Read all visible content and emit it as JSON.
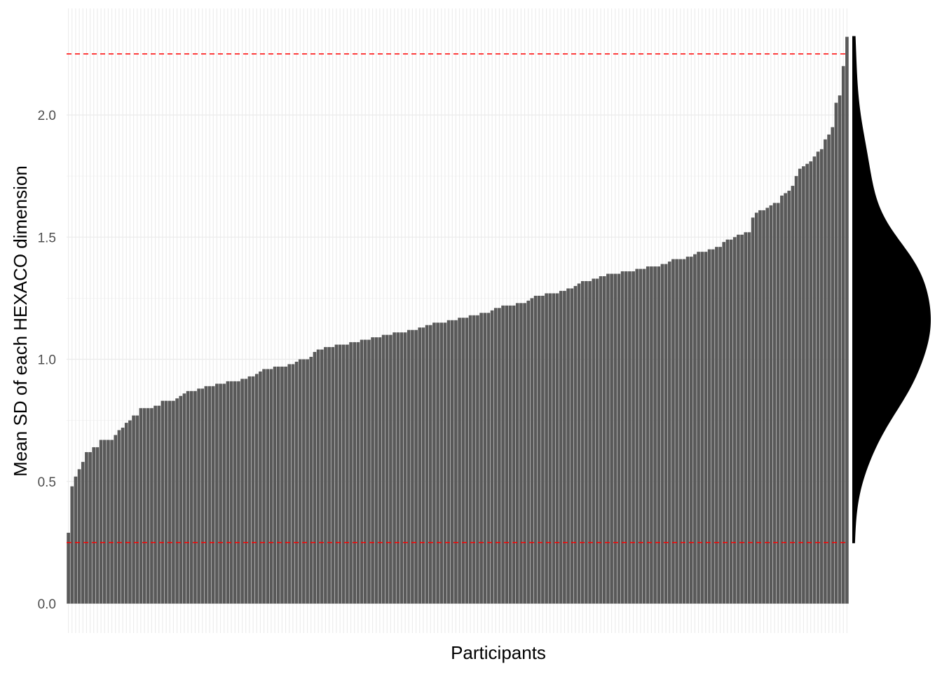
{
  "chart_data": {
    "type": "bar",
    "title": "",
    "xlabel": "Participants",
    "ylabel": "Mean SD of each HEXACO dimension",
    "ylim": [
      0.0,
      2.32
    ],
    "yticks": [
      0.0,
      0.5,
      1.0,
      1.5,
      2.0
    ],
    "ytick_labels": [
      "0.0",
      "0.5",
      "1.0",
      "1.5",
      "2.0"
    ],
    "x_tick_labels_shown": false,
    "grid": true,
    "bar_color": "#595959",
    "grid_color": "#ebebeb",
    "reference_lines": [
      {
        "value": 2.25,
        "color": "#ff0000",
        "style": "dashed"
      },
      {
        "value": 0.25,
        "color": "#ff0000",
        "style": "dashed"
      }
    ],
    "marginal_density": {
      "side": "right",
      "color": "#000000",
      "y_range": [
        0.25,
        2.32
      ]
    },
    "sorted_ascending": true,
    "values": [
      0.29,
      0.48,
      0.52,
      0.55,
      0.58,
      0.62,
      0.62,
      0.64,
      0.64,
      0.67,
      0.67,
      0.67,
      0.67,
      0.69,
      0.71,
      0.72,
      0.74,
      0.75,
      0.77,
      0.77,
      0.8,
      0.8,
      0.8,
      0.8,
      0.81,
      0.81,
      0.83,
      0.83,
      0.83,
      0.83,
      0.84,
      0.85,
      0.86,
      0.87,
      0.87,
      0.87,
      0.88,
      0.88,
      0.89,
      0.89,
      0.89,
      0.9,
      0.9,
      0.9,
      0.91,
      0.91,
      0.91,
      0.91,
      0.92,
      0.92,
      0.93,
      0.93,
      0.94,
      0.95,
      0.96,
      0.96,
      0.96,
      0.97,
      0.97,
      0.97,
      0.97,
      0.98,
      0.98,
      0.99,
      1.0,
      1.0,
      1.0,
      1.01,
      1.03,
      1.04,
      1.04,
      1.05,
      1.05,
      1.05,
      1.06,
      1.06,
      1.06,
      1.06,
      1.07,
      1.07,
      1.07,
      1.08,
      1.08,
      1.08,
      1.09,
      1.09,
      1.09,
      1.1,
      1.1,
      1.1,
      1.11,
      1.11,
      1.11,
      1.11,
      1.12,
      1.12,
      1.12,
      1.13,
      1.13,
      1.14,
      1.14,
      1.15,
      1.15,
      1.15,
      1.15,
      1.16,
      1.16,
      1.16,
      1.17,
      1.17,
      1.17,
      1.18,
      1.18,
      1.18,
      1.19,
      1.19,
      1.19,
      1.2,
      1.21,
      1.21,
      1.22,
      1.22,
      1.22,
      1.22,
      1.23,
      1.23,
      1.23,
      1.24,
      1.25,
      1.26,
      1.26,
      1.26,
      1.27,
      1.27,
      1.27,
      1.27,
      1.28,
      1.28,
      1.29,
      1.29,
      1.3,
      1.31,
      1.32,
      1.32,
      1.32,
      1.33,
      1.33,
      1.34,
      1.34,
      1.35,
      1.35,
      1.35,
      1.35,
      1.36,
      1.36,
      1.36,
      1.36,
      1.37,
      1.37,
      1.37,
      1.38,
      1.38,
      1.38,
      1.38,
      1.39,
      1.39,
      1.4,
      1.41,
      1.41,
      1.41,
      1.41,
      1.42,
      1.42,
      1.43,
      1.44,
      1.44,
      1.44,
      1.45,
      1.45,
      1.46,
      1.46,
      1.48,
      1.49,
      1.49,
      1.5,
      1.51,
      1.51,
      1.52,
      1.52,
      1.58,
      1.6,
      1.61,
      1.61,
      1.62,
      1.63,
      1.64,
      1.64,
      1.67,
      1.68,
      1.69,
      1.71,
      1.75,
      1.78,
      1.79,
      1.8,
      1.81,
      1.83,
      1.85,
      1.86,
      1.9,
      1.92,
      1.95,
      2.05,
      2.08,
      2.2,
      2.32
    ]
  }
}
